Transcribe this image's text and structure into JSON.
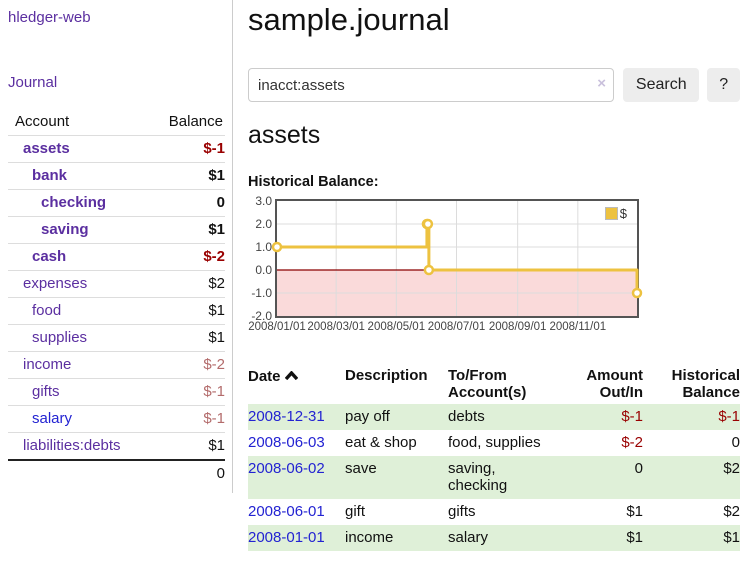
{
  "app": {
    "title": "hledger-web"
  },
  "sidebar": {
    "journal_label": "Journal",
    "table": {
      "account_header": "Account",
      "balance_header": "Balance",
      "accounts": [
        {
          "name": "assets",
          "balance": "$-1",
          "indent": 1,
          "bold": true,
          "neg": "strong"
        },
        {
          "name": "bank",
          "balance": "$1",
          "indent": 2,
          "bold": true,
          "neg": "none"
        },
        {
          "name": "checking",
          "balance": "0",
          "indent": 3,
          "bold": true,
          "neg": "none"
        },
        {
          "name": "saving",
          "balance": "$1",
          "indent": 3,
          "bold": true,
          "neg": "none"
        },
        {
          "name": "cash",
          "balance": "$-2",
          "indent": 2,
          "bold": true,
          "neg": "strong"
        },
        {
          "name": "expenses",
          "balance": "$2",
          "indent": 1,
          "bold": false,
          "neg": "none"
        },
        {
          "name": "food",
          "balance": "$1",
          "indent": 2,
          "bold": false,
          "neg": "none"
        },
        {
          "name": "supplies",
          "balance": "$1",
          "indent": 2,
          "bold": false,
          "neg": "none"
        },
        {
          "name": "income",
          "balance": "$-2",
          "indent": 1,
          "bold": false,
          "neg": "muted"
        },
        {
          "name": "gifts",
          "balance": "$-1",
          "indent": 2,
          "bold": false,
          "neg": "muted"
        },
        {
          "name": "salary",
          "balance": "$-1",
          "indent": 2,
          "bold": false,
          "neg": "muted",
          "link_color": "blue"
        },
        {
          "name": "liabilities:debts",
          "balance": "$1",
          "indent": 1,
          "bold": false,
          "neg": "none"
        }
      ],
      "total": "0"
    }
  },
  "main": {
    "title": "sample.journal",
    "search": {
      "value": "inacct:assets",
      "clear_icon": "×",
      "search_button": "Search",
      "help_button": "?"
    },
    "account_heading": "assets",
    "chart_label": "Historical Balance:",
    "register": {
      "headers": {
        "date": "Date",
        "description": "Description",
        "account": "To/From Account(s)",
        "amount": "Amount Out/In",
        "balance": "Historical Balance"
      },
      "rows": [
        {
          "date": "2008-12-31",
          "description": "pay off",
          "account": "debts",
          "amount": "$-1",
          "balance": "$-1",
          "amount_neg": true,
          "balance_neg": true,
          "shade": true
        },
        {
          "date": "2008-06-03",
          "description": "eat & shop",
          "account": "food, supplies",
          "amount": "$-2",
          "balance": "0",
          "amount_neg": true,
          "balance_neg": false,
          "shade": false
        },
        {
          "date": "2008-06-02",
          "description": "save",
          "account": "saving, checking",
          "amount": "0",
          "balance": "$2",
          "amount_neg": false,
          "balance_neg": false,
          "shade": true
        },
        {
          "date": "2008-06-01",
          "description": "gift",
          "account": "gifts",
          "amount": "$1",
          "balance": "$2",
          "amount_neg": false,
          "balance_neg": false,
          "shade": false
        },
        {
          "date": "2008-01-01",
          "description": "income",
          "account": "salary",
          "amount": "$1",
          "balance": "$1",
          "amount_neg": false,
          "balance_neg": false,
          "shade": true
        }
      ]
    }
  },
  "chart_data": {
    "type": "line",
    "title": "Historical Balance:",
    "steps": true,
    "series": [
      {
        "name": "$",
        "color": "#edc240",
        "points": [
          {
            "x": "2008-01-01",
            "y": 1
          },
          {
            "x": "2008-06-01",
            "y": 2
          },
          {
            "x": "2008-06-02",
            "y": 2
          },
          {
            "x": "2008-06-03",
            "y": 0
          },
          {
            "x": "2008-12-31",
            "y": -1
          }
        ]
      }
    ],
    "xlim": [
      "2008-01-01",
      "2008-12-31"
    ],
    "ylim": [
      -2,
      3
    ],
    "yticks": [
      "3.0",
      "2.0",
      "1.0",
      "0.0",
      "-1.0",
      "-2.0"
    ],
    "xticks": [
      "2008/01/01",
      "2008/03/01",
      "2008/05/01",
      "2008/07/01",
      "2008/09/01",
      "2008/11/01"
    ],
    "grid": true,
    "legend_position": "top-right",
    "negative_region_color": "#fadada",
    "zero_line_color": "#8b0000",
    "grid_color": "#dcdcdc"
  },
  "colors": {
    "link_purple": "#5b2fa0",
    "link_blue": "#2323d2",
    "negative_strong": "#990000",
    "negative_muted": "#b36b6b",
    "row_stripe_green": "#dff0d8",
    "chart_line": "#edc240",
    "chart_border": "#545454"
  }
}
